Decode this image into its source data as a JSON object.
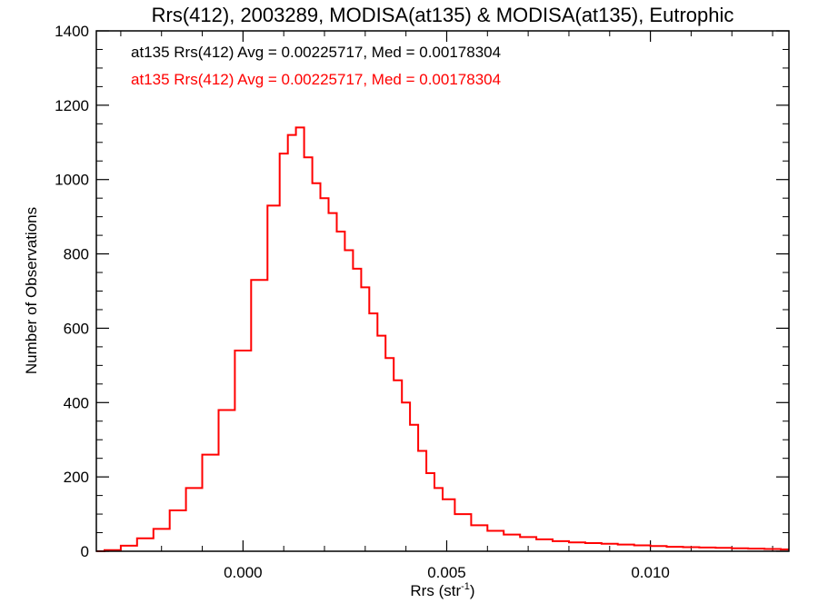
{
  "chart_data": {
    "type": "line",
    "step": true,
    "title": "Rrs(412), 2003289, MODISA(at135) & MODISA(at135), Eutrophic",
    "xlabel": "Rrs (str",
    "xlabel_sup": "-1",
    "xlabel_close": ")",
    "ylabel": "Number of Observations",
    "xlim": [
      -0.0036,
      0.0134
    ],
    "ylim": [
      0,
      1400
    ],
    "x_ticks": [
      {
        "value": 0.0,
        "label": "0.000"
      },
      {
        "value": 0.005,
        "label": "0.005"
      },
      {
        "value": 0.01,
        "label": "0.010"
      }
    ],
    "y_ticks": [
      {
        "value": 0,
        "label": "0"
      },
      {
        "value": 200,
        "label": "200"
      },
      {
        "value": 400,
        "label": "400"
      },
      {
        "value": 600,
        "label": "600"
      },
      {
        "value": 800,
        "label": "800"
      },
      {
        "value": 1000,
        "label": "1000"
      },
      {
        "value": 1200,
        "label": "1200"
      },
      {
        "value": 1400,
        "label": "1400"
      }
    ],
    "annotations": [
      {
        "text": "at135 Rrs(412) Avg = 0.00225717, Med = 0.00178304",
        "color": "#000000"
      },
      {
        "text": "at135 Rrs(412) Avg = 0.00225717, Med = 0.00178304",
        "color": "#ff0000"
      }
    ],
    "series": [
      {
        "color": "#ff0000",
        "x": [
          -0.0036,
          -0.0032,
          -0.0028,
          -0.0024,
          -0.002,
          -0.0016,
          -0.0012,
          -0.0008,
          -0.0004,
          0.0,
          0.0004,
          0.0008,
          0.001,
          0.0012,
          0.0014,
          0.0016,
          0.0018,
          0.002,
          0.0022,
          0.0024,
          0.0026,
          0.0028,
          0.003,
          0.0032,
          0.0034,
          0.0036,
          0.0038,
          0.004,
          0.0042,
          0.0044,
          0.0046,
          0.0048,
          0.005,
          0.0054,
          0.0058,
          0.0062,
          0.0066,
          0.007,
          0.0074,
          0.0078,
          0.0082,
          0.0086,
          0.009,
          0.0094,
          0.0098,
          0.0102,
          0.0106,
          0.011,
          0.0114,
          0.0118,
          0.0122,
          0.0126,
          0.013,
          0.0134
        ],
        "values": [
          0,
          3,
          15,
          35,
          60,
          110,
          170,
          260,
          380,
          540,
          730,
          930,
          1070,
          1120,
          1140,
          1060,
          990,
          950,
          910,
          860,
          810,
          760,
          710,
          640,
          580,
          520,
          460,
          400,
          340,
          270,
          210,
          170,
          140,
          100,
          70,
          55,
          45,
          38,
          32,
          27,
          24,
          22,
          20,
          18,
          16,
          14,
          12,
          11,
          10,
          9,
          8,
          7,
          6,
          5
        ]
      }
    ]
  }
}
